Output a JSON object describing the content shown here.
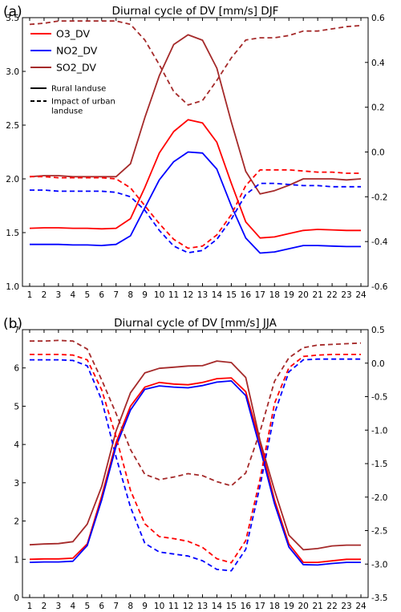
{
  "chart_data": [
    {
      "type": "line",
      "panel_label": "(a)",
      "title": "Diurnal cycle of DV [mm/s] DJF",
      "x": [
        1,
        2,
        3,
        4,
        5,
        6,
        7,
        8,
        9,
        10,
        11,
        12,
        13,
        14,
        15,
        16,
        17,
        18,
        19,
        20,
        21,
        22,
        23,
        24
      ],
      "xlim": [
        0.5,
        24.5
      ],
      "ylim": [
        1.0,
        3.5
      ],
      "y2lim": [
        -0.6,
        0.6
      ],
      "y_ticks": [
        "1.0",
        "1.5",
        "2.0",
        "2.5",
        "3.0",
        "3.5"
      ],
      "y2_ticks": [
        "-0.6",
        "-0.4",
        "-0.2",
        "0.0",
        "0.2",
        "0.4",
        "0.6"
      ],
      "legend": {
        "placement": "top-left",
        "series": [
          {
            "name": "O3_DV",
            "color": "#ff0000"
          },
          {
            "name": "NO2_DV",
            "color": "#0000ff"
          },
          {
            "name": "SO2_DV",
            "color": "#a52a2a"
          }
        ],
        "styles": [
          {
            "name": "Rural landuse",
            "dash": "solid"
          },
          {
            "name": "Impact of urban landuse",
            "dash": "dashed"
          }
        ]
      },
      "rural_left_axis": [
        {
          "name": "O3_DV",
          "color": "#ff0000",
          "values": [
            1.54,
            1.545,
            1.545,
            1.54,
            1.54,
            1.535,
            1.54,
            1.63,
            1.92,
            2.24,
            2.44,
            2.55,
            2.52,
            2.34,
            1.96,
            1.6,
            1.45,
            1.46,
            1.49,
            1.52,
            1.53,
            1.525,
            1.52,
            1.52
          ]
        },
        {
          "name": "NO2_DV",
          "color": "#0000ff",
          "values": [
            1.39,
            1.39,
            1.39,
            1.385,
            1.385,
            1.38,
            1.39,
            1.47,
            1.73,
            1.99,
            2.16,
            2.25,
            2.24,
            2.09,
            1.75,
            1.45,
            1.31,
            1.32,
            1.35,
            1.38,
            1.38,
            1.375,
            1.37,
            1.37
          ]
        },
        {
          "name": "SO2_DV",
          "color": "#a52a2a",
          "values": [
            2.02,
            2.03,
            2.03,
            2.02,
            2.02,
            2.02,
            2.02,
            2.14,
            2.57,
            2.96,
            3.25,
            3.34,
            3.29,
            3.03,
            2.53,
            2.07,
            1.86,
            1.89,
            1.94,
            2.0,
            2.0,
            2.0,
            1.99,
            2.0
          ]
        }
      ],
      "urban_impact_right_axis": [
        {
          "name": "O3_DV",
          "color": "#ff0000",
          "values": [
            -0.11,
            -0.11,
            -0.115,
            -0.115,
            -0.115,
            -0.115,
            -0.12,
            -0.16,
            -0.24,
            -0.32,
            -0.39,
            -0.43,
            -0.42,
            -0.37,
            -0.28,
            -0.15,
            -0.08,
            -0.08,
            -0.08,
            -0.085,
            -0.09,
            -0.09,
            -0.095,
            -0.095
          ]
        },
        {
          "name": "NO2_DV",
          "color": "#0000ff",
          "values": [
            -0.17,
            -0.17,
            -0.175,
            -0.175,
            -0.175,
            -0.175,
            -0.18,
            -0.2,
            -0.26,
            -0.35,
            -0.42,
            -0.45,
            -0.44,
            -0.39,
            -0.3,
            -0.19,
            -0.14,
            -0.14,
            -0.145,
            -0.15,
            -0.15,
            -0.155,
            -0.155,
            -0.155
          ]
        },
        {
          "name": "SO2_DV",
          "color": "#a52a2a",
          "values": [
            0.57,
            0.575,
            0.585,
            0.585,
            0.585,
            0.585,
            0.585,
            0.57,
            0.5,
            0.39,
            0.27,
            0.21,
            0.23,
            0.32,
            0.42,
            0.5,
            0.51,
            0.51,
            0.52,
            0.54,
            0.54,
            0.55,
            0.56,
            0.565
          ]
        }
      ]
    },
    {
      "type": "line",
      "panel_label": "(b)",
      "title": "Diurnal cycle of DV [mm/s] JJA",
      "x": [
        1,
        2,
        3,
        4,
        5,
        6,
        7,
        8,
        9,
        10,
        11,
        12,
        13,
        14,
        15,
        16,
        17,
        18,
        19,
        20,
        21,
        22,
        23,
        24
      ],
      "xlim": [
        0.5,
        24.5
      ],
      "ylim": [
        0,
        7
      ],
      "y2lim": [
        -3.5,
        0.5
      ],
      "y_ticks": [
        "0",
        "1",
        "2",
        "3",
        "4",
        "5",
        "6",
        "7"
      ],
      "y2_ticks": [
        "-3.5",
        "-3.0",
        "-2.5",
        "-2.0",
        "-1.5",
        "-1.0",
        "-0.5",
        "0.0",
        "0.5"
      ],
      "rural_left_axis": [
        {
          "name": "O3_DV",
          "color": "#ff0000",
          "values": [
            1.0,
            1.01,
            1.01,
            1.03,
            1.4,
            2.65,
            4.05,
            5.0,
            5.5,
            5.62,
            5.58,
            5.56,
            5.62,
            5.72,
            5.74,
            5.38,
            4.05,
            2.55,
            1.4,
            0.92,
            0.92,
            0.96,
            1.0,
            1.0
          ]
        },
        {
          "name": "NO2_DV",
          "color": "#0000ff",
          "values": [
            0.92,
            0.93,
            0.93,
            0.95,
            1.36,
            2.55,
            3.95,
            4.9,
            5.44,
            5.53,
            5.5,
            5.48,
            5.54,
            5.63,
            5.66,
            5.28,
            3.9,
            2.45,
            1.32,
            0.86,
            0.85,
            0.89,
            0.92,
            0.92
          ]
        },
        {
          "name": "SO2_DV",
          "color": "#a52a2a",
          "values": [
            1.38,
            1.4,
            1.41,
            1.46,
            1.92,
            2.9,
            4.35,
            5.35,
            5.87,
            5.99,
            6.02,
            6.05,
            6.06,
            6.18,
            6.14,
            5.75,
            4.1,
            2.8,
            1.63,
            1.25,
            1.28,
            1.35,
            1.37,
            1.37
          ]
        }
      ],
      "urban_impact_right_axis": [
        {
          "name": "O3_DV",
          "color": "#ff0000",
          "values": [
            0.13,
            0.13,
            0.13,
            0.12,
            0.05,
            -0.4,
            -1.1,
            -1.9,
            -2.4,
            -2.59,
            -2.62,
            -2.66,
            -2.75,
            -2.92,
            -2.98,
            -2.65,
            -1.73,
            -0.6,
            -0.07,
            0.1,
            0.12,
            0.13,
            0.13,
            0.13
          ]
        },
        {
          "name": "NO2_DV",
          "color": "#0000ff",
          "values": [
            0.05,
            0.05,
            0.05,
            0.04,
            -0.04,
            -0.55,
            -1.4,
            -2.15,
            -2.69,
            -2.82,
            -2.85,
            -2.88,
            -2.95,
            -3.08,
            -3.1,
            -2.78,
            -1.83,
            -0.75,
            -0.13,
            0.05,
            0.06,
            0.06,
            0.06,
            0.06
          ]
        },
        {
          "name": "SO2_DV",
          "color": "#a52a2a",
          "values": [
            0.33,
            0.33,
            0.34,
            0.33,
            0.21,
            -0.25,
            -0.75,
            -1.29,
            -1.66,
            -1.74,
            -1.7,
            -1.65,
            -1.68,
            -1.77,
            -1.83,
            -1.64,
            -1.02,
            -0.27,
            0.08,
            0.23,
            0.27,
            0.28,
            0.29,
            0.3
          ]
        }
      ]
    }
  ]
}
